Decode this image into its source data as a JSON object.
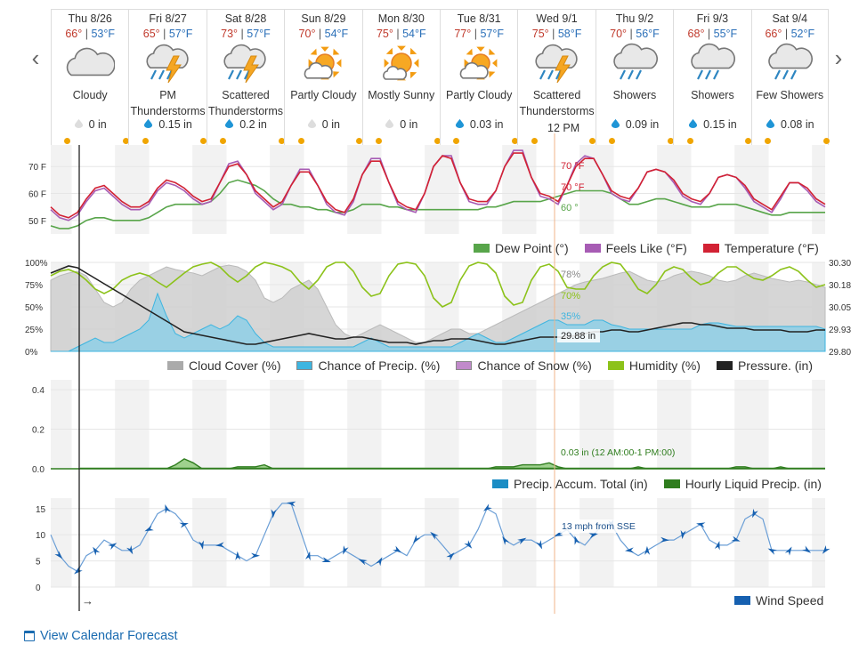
{
  "nav": {
    "prev_label": "‹",
    "next_label": "›"
  },
  "noon_label": "12 PM",
  "days": [
    {
      "name": "Thu 8/26",
      "hi": "66°",
      "lo": "53°F",
      "cond": "Cloudy",
      "icon": "cloud-icon",
      "precip": "0 in",
      "drop": "gray"
    },
    {
      "name": "Fri 8/27",
      "hi": "65°",
      "lo": "57°F",
      "cond": "PM Thunderstorms",
      "icon": "thunderstorm-icon",
      "precip": "0.15 in",
      "drop": "blue"
    },
    {
      "name": "Sat 8/28",
      "hi": "73°",
      "lo": "57°F",
      "cond": "Scattered Thunderstorms",
      "icon": "thunderstorm-icon",
      "precip": "0.2 in",
      "drop": "blue"
    },
    {
      "name": "Sun 8/29",
      "hi": "70°",
      "lo": "54°F",
      "cond": "Partly Cloudy",
      "icon": "partly-cloudy-icon",
      "precip": "0 in",
      "drop": "gray"
    },
    {
      "name": "Mon 8/30",
      "hi": "75°",
      "lo": "54°F",
      "cond": "Mostly Sunny",
      "icon": "mostly-sunny-icon",
      "precip": "0 in",
      "drop": "gray"
    },
    {
      "name": "Tue 8/31",
      "hi": "77°",
      "lo": "57°F",
      "cond": "Partly Cloudy",
      "icon": "partly-cloudy-icon",
      "precip": "0.03 in",
      "drop": "blue"
    },
    {
      "name": "Wed 9/1",
      "hi": "75°",
      "lo": "58°F",
      "cond": "Scattered Thunderstorms",
      "icon": "thunderstorm-icon",
      "precip": "",
      "drop": "none"
    },
    {
      "name": "Thu 9/2",
      "hi": "70°",
      "lo": "56°F",
      "cond": "Showers",
      "icon": "rain-icon",
      "precip": "0.09 in",
      "drop": "blue"
    },
    {
      "name": "Fri 9/3",
      "hi": "68°",
      "lo": "55°F",
      "cond": "Showers",
      "icon": "rain-icon",
      "precip": "0.15 in",
      "drop": "blue"
    },
    {
      "name": "Sat 9/4",
      "hi": "66°",
      "lo": "52°F",
      "cond": "Few Showers",
      "icon": "rain-icon",
      "precip": "0.08 in",
      "drop": "blue"
    }
  ],
  "colors": {
    "temperature": "#d22234",
    "feels_like": "#a75cb4",
    "dew_point": "#58a54a",
    "cloud_cover": "#aaaaaa",
    "precip_chance": "#3eb5e0",
    "snow_chance": "#c18acb",
    "humidity": "#8cc21a",
    "pressure": "#222222",
    "precip_accum": "#1b8dc4",
    "hourly_precip": "#2f7d1e",
    "wind": "#1660b0",
    "link": "#1a6bb0"
  },
  "calendar_link": "View Calendar Forecast",
  "chart_data": [
    {
      "type": "line",
      "x": "hours from Thu 8/26 midnight (3-hour steps)",
      "ylim": [
        45,
        78
      ],
      "ticks": [
        "70 F",
        "60 F",
        "50 F"
      ],
      "series": [
        {
          "name": "Temperature (°F)",
          "values": [
            55,
            52,
            51,
            53,
            58,
            62,
            63,
            60,
            57,
            55,
            55,
            57,
            62,
            65,
            64,
            62,
            59,
            57,
            58,
            64,
            70,
            71,
            67,
            61,
            58,
            55,
            57,
            63,
            68,
            68,
            63,
            57,
            54,
            53,
            58,
            67,
            72,
            72,
            64,
            57,
            55,
            54,
            60,
            70,
            74,
            73,
            64,
            58,
            57,
            57,
            61,
            70,
            75,
            75,
            66,
            60,
            59,
            57,
            63,
            70,
            73,
            73,
            67,
            61,
            59,
            58,
            62,
            68,
            69,
            68,
            65,
            60,
            58,
            57,
            60,
            66,
            67,
            66,
            63,
            58,
            56,
            54,
            59,
            64,
            64,
            62,
            58,
            56
          ]
        },
        {
          "name": "Feels Like (°F)",
          "values": [
            54,
            51,
            50,
            52,
            57,
            61,
            62,
            59,
            56,
            54,
            54,
            56,
            61,
            64,
            63,
            61,
            58,
            56,
            57,
            64,
            71,
            72,
            67,
            60,
            57,
            54,
            56,
            63,
            69,
            69,
            63,
            56,
            53,
            52,
            57,
            67,
            73,
            73,
            64,
            56,
            54,
            53,
            60,
            70,
            74,
            74,
            64,
            57,
            56,
            56,
            61,
            70,
            76,
            76,
            66,
            59,
            58,
            56,
            63,
            71,
            74,
            73,
            67,
            60,
            58,
            57,
            62,
            68,
            69,
            68,
            64,
            59,
            57,
            56,
            60,
            66,
            67,
            66,
            62,
            57,
            55,
            53,
            58,
            64,
            64,
            61,
            57,
            55
          ]
        },
        {
          "name": "Dew Point (°)",
          "values": [
            48,
            47,
            47,
            48,
            50,
            51,
            51,
            50,
            50,
            50,
            50,
            51,
            53,
            55,
            56,
            56,
            56,
            56,
            57,
            60,
            64,
            65,
            64,
            63,
            61,
            58,
            56,
            56,
            55,
            55,
            54,
            54,
            53,
            53,
            54,
            56,
            56,
            56,
            55,
            55,
            54,
            54,
            54,
            54,
            54,
            54,
            54,
            54,
            54,
            55,
            55,
            56,
            57,
            57,
            57,
            57,
            58,
            59,
            60,
            61,
            61,
            61,
            61,
            60,
            58,
            56,
            56,
            57,
            58,
            58,
            57,
            56,
            55,
            55,
            55,
            56,
            56,
            56,
            55,
            54,
            53,
            52,
            52,
            53,
            53,
            53,
            53,
            53
          ]
        }
      ],
      "annotations": [
        "70 °F",
        "70 °F",
        "60 °"
      ]
    },
    {
      "type": "area",
      "ylim_left": [
        "0%",
        "25%",
        "50%",
        "75%",
        "100%"
      ],
      "ylim_right": [
        "29.80",
        "29.93",
        "30.05",
        "30.18",
        "30.30"
      ],
      "series": [
        {
          "name": "Cloud Cover (%)",
          "values": [
            80,
            85,
            88,
            90,
            85,
            70,
            55,
            50,
            55,
            70,
            80,
            85,
            90,
            95,
            92,
            90,
            88,
            85,
            90,
            95,
            97,
            95,
            90,
            80,
            60,
            55,
            60,
            70,
            75,
            80,
            70,
            50,
            30,
            20,
            15,
            20,
            25,
            30,
            25,
            20,
            15,
            10,
            10,
            15,
            20,
            25,
            25,
            20,
            20,
            25,
            30,
            35,
            40,
            45,
            50,
            55,
            60,
            65,
            70,
            75,
            78,
            80,
            82,
            85,
            88,
            90,
            85,
            80,
            78,
            80,
            85,
            88,
            90,
            88,
            85,
            80,
            78,
            80,
            85,
            88,
            85,
            82,
            80,
            78,
            80,
            78,
            75,
            72
          ]
        },
        {
          "name": "Chance of Precip. (%)",
          "values": [
            0,
            0,
            0,
            5,
            10,
            15,
            10,
            10,
            15,
            20,
            25,
            35,
            65,
            40,
            20,
            15,
            20,
            25,
            30,
            25,
            30,
            40,
            35,
            20,
            10,
            5,
            5,
            5,
            5,
            5,
            5,
            5,
            5,
            5,
            5,
            10,
            15,
            10,
            5,
            5,
            5,
            5,
            5,
            5,
            5,
            5,
            10,
            15,
            20,
            15,
            10,
            10,
            15,
            20,
            25,
            30,
            35,
            35,
            30,
            30,
            30,
            35,
            35,
            30,
            28,
            25,
            25,
            25,
            25,
            25,
            25,
            25,
            25,
            30,
            32,
            32,
            30,
            28,
            28,
            28,
            28,
            28,
            28,
            28,
            28,
            28,
            28,
            25
          ]
        },
        {
          "name": "Chance of Snow (%)",
          "values": []
        },
        {
          "name": "Humidity (%)",
          "values": [
            85,
            90,
            92,
            88,
            80,
            70,
            65,
            70,
            80,
            85,
            88,
            85,
            78,
            72,
            80,
            88,
            95,
            98,
            100,
            95,
            85,
            78,
            85,
            95,
            100,
            98,
            95,
            90,
            78,
            70,
            80,
            95,
            100,
            100,
            90,
            72,
            62,
            65,
            85,
            98,
            100,
            98,
            85,
            60,
            50,
            55,
            80,
            96,
            100,
            98,
            88,
            62,
            52,
            55,
            80,
            95,
            98,
            90,
            72,
            70,
            70,
            85,
            95,
            100,
            98,
            85,
            70,
            65,
            75,
            90,
            95,
            92,
            82,
            75,
            78,
            88,
            95,
            95,
            88,
            82,
            80,
            85,
            92,
            95,
            90,
            80,
            72,
            75
          ]
        },
        {
          "name": "Pressure. (in)",
          "values": [
            30.24,
            30.26,
            30.28,
            30.27,
            30.24,
            30.21,
            30.18,
            30.15,
            30.12,
            30.09,
            30.06,
            30.03,
            30.0,
            29.97,
            29.94,
            29.91,
            29.9,
            29.89,
            29.88,
            29.87,
            29.86,
            29.85,
            29.84,
            29.84,
            29.85,
            29.86,
            29.87,
            29.88,
            29.89,
            29.9,
            29.89,
            29.88,
            29.87,
            29.87,
            29.88,
            29.88,
            29.87,
            29.86,
            29.85,
            29.85,
            29.85,
            29.84,
            29.85,
            29.86,
            29.86,
            29.87,
            29.87,
            29.87,
            29.86,
            29.85,
            29.84,
            29.84,
            29.85,
            29.86,
            29.87,
            29.88,
            29.88,
            29.88,
            29.88,
            29.89,
            29.9,
            29.91,
            29.91,
            29.92,
            29.92,
            29.91,
            29.91,
            29.92,
            29.93,
            29.94,
            29.95,
            29.96,
            29.96,
            29.95,
            29.95,
            29.94,
            29.93,
            29.93,
            29.93,
            29.92,
            29.92,
            29.92,
            29.92,
            29.91,
            29.91,
            29.91,
            29.92,
            29.92
          ]
        }
      ],
      "annotations": [
        "78%",
        "70%",
        "35%",
        "29.88 in"
      ]
    },
    {
      "type": "area",
      "ticks": [
        "0.4",
        "0.2",
        "0.0"
      ],
      "ylim": [
        0,
        0.45
      ],
      "series": [
        {
          "name": "Precip. Accum. Total (in)",
          "values": []
        },
        {
          "name": "Hourly Liquid Precip. (in)",
          "values": [
            0,
            0,
            0,
            0,
            0,
            0,
            0,
            0,
            0,
            0,
            0,
            0,
            0,
            0,
            0.02,
            0.05,
            0.03,
            0,
            0,
            0,
            0,
            0.01,
            0.01,
            0.01,
            0.02,
            0,
            0,
            0,
            0,
            0,
            0,
            0,
            0,
            0,
            0,
            0,
            0,
            0,
            0,
            0,
            0,
            0,
            0,
            0,
            0,
            0,
            0,
            0,
            0,
            0,
            0.01,
            0.01,
            0.01,
            0.02,
            0.02,
            0.02,
            0.03,
            0.01,
            0,
            0,
            0,
            0,
            0,
            0,
            0,
            0,
            0.01,
            0,
            0,
            0,
            0,
            0,
            0,
            0,
            0,
            0,
            0,
            0.01,
            0.01,
            0,
            0,
            0,
            0.01,
            0,
            0,
            0,
            0,
            0
          ]
        }
      ],
      "annotations": [
        "0.03 in (12 AM:00-1 PM:00)"
      ]
    },
    {
      "type": "line",
      "ticks": [
        "15",
        "10",
        "5",
        "0"
      ],
      "ylim": [
        0,
        17
      ],
      "series": [
        {
          "name": "Wind Speed",
          "values": [
            10,
            6,
            4,
            3,
            6,
            7,
            9,
            8,
            7,
            7,
            8,
            11,
            14,
            15,
            14,
            12,
            9,
            8,
            8,
            8,
            7,
            6,
            5,
            6,
            10,
            14,
            16,
            16,
            11,
            6,
            6,
            5,
            6,
            7,
            6,
            5,
            4,
            5,
            6,
            7,
            6,
            9,
            10,
            10,
            8,
            6,
            7,
            8,
            11,
            15,
            14,
            9,
            8,
            9,
            9,
            8,
            9,
            10,
            11,
            9,
            8,
            10,
            12,
            12,
            9,
            7,
            6,
            7,
            8,
            9,
            9,
            10,
            11,
            12,
            9,
            8,
            8,
            9,
            13,
            14,
            13,
            7,
            7,
            7,
            7,
            7,
            7,
            7
          ]
        }
      ],
      "annotations": [
        "13 mph from SSE"
      ]
    }
  ],
  "legends": {
    "temp": [
      {
        "label": "Dew Point (°)",
        "key": "dew_point"
      },
      {
        "label": "Feels Like (°F)",
        "key": "feels_like"
      },
      {
        "label": "Temperature (°F)",
        "key": "temperature"
      }
    ],
    "humid": [
      {
        "label": "Cloud Cover (%)",
        "key": "cloud_cover"
      },
      {
        "label": "Chance of Precip. (%)",
        "key": "precip_chance"
      },
      {
        "label": "Chance of Snow (%)",
        "key": "snow_chance"
      },
      {
        "label": "Humidity (%)",
        "key": "humidity"
      },
      {
        "label": "Pressure. (in)",
        "key": "pressure"
      }
    ],
    "precip": [
      {
        "label": "Precip. Accum. Total (in)",
        "key": "precip_accum"
      },
      {
        "label": "Hourly Liquid Precip. (in)",
        "key": "hourly_precip"
      }
    ],
    "wind": [
      {
        "label": "Wind Speed",
        "key": "wind"
      }
    ]
  },
  "arrow_label": "→"
}
